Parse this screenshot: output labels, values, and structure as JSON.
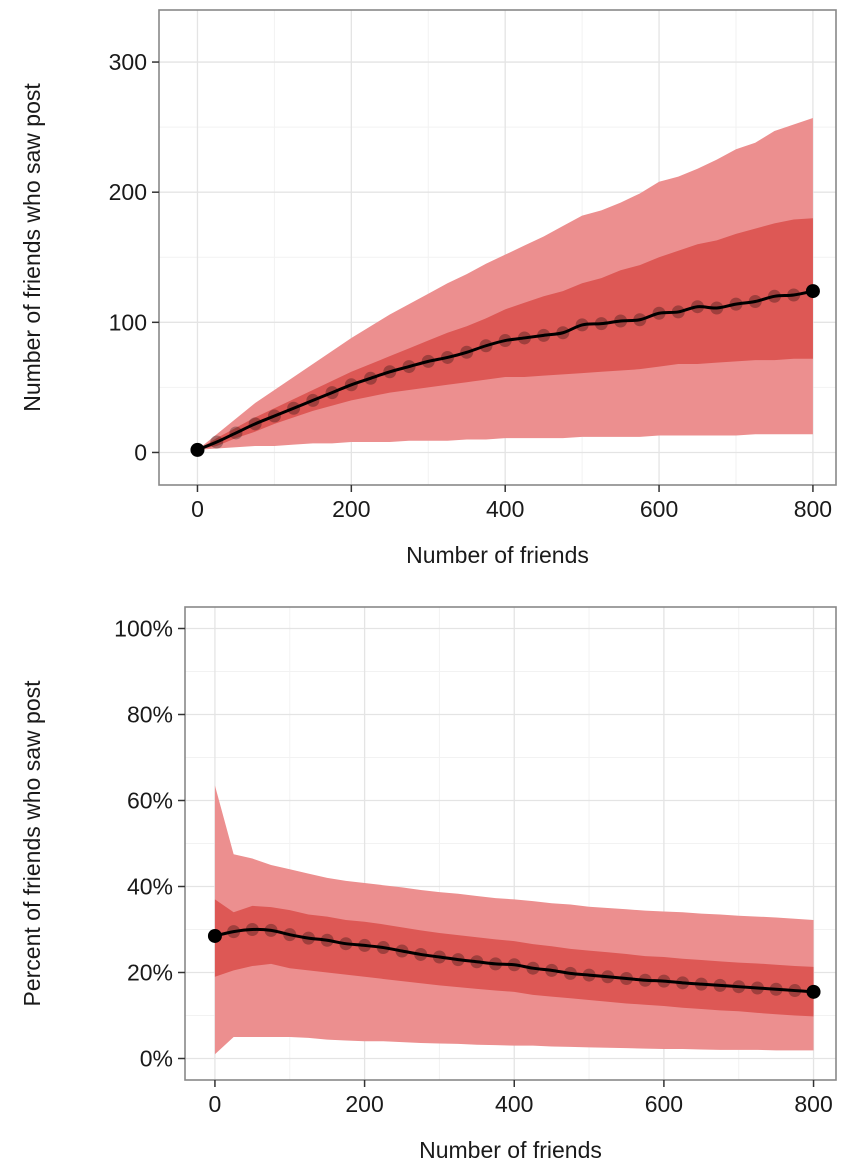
{
  "chart_data": [
    {
      "type": "area",
      "xlabel": "Number of friends",
      "ylabel": "Number of friends who saw post",
      "xlim": [
        -50,
        830
      ],
      "ylim": [
        -25,
        340
      ],
      "x_ticks": [
        0,
        200,
        400,
        600,
        800
      ],
      "y_ticks": [
        0,
        100,
        200,
        300
      ],
      "x_tick_labels": [
        "0",
        "200",
        "400",
        "600",
        "800"
      ],
      "y_tick_labels": [
        "0",
        "100",
        "200",
        "300"
      ],
      "grid": true,
      "colors": {
        "outer_band": "#ec8f8f",
        "inner_band": "#dd5855",
        "line": "#000000",
        "points": "#000000",
        "grid_major": "#e4e4e4",
        "grid_minor": "#f2f2f2",
        "border": "#888888"
      },
      "x": [
        0,
        25,
        50,
        75,
        100,
        125,
        150,
        175,
        200,
        225,
        250,
        275,
        300,
        325,
        350,
        375,
        400,
        425,
        450,
        475,
        500,
        525,
        550,
        575,
        600,
        625,
        650,
        675,
        700,
        725,
        750,
        775,
        800
      ],
      "series": [
        {
          "values": [
            2,
            8,
            15,
            22,
            28,
            34,
            40,
            46,
            52,
            57,
            62,
            66,
            70,
            73,
            77,
            82,
            86,
            88,
            90,
            92,
            98,
            99,
            101,
            102,
            107,
            108,
            112,
            111,
            114,
            116,
            120,
            121,
            124
          ]
        },
        {
          "values": [
            2,
            5,
            11,
            16,
            22,
            27,
            32,
            36,
            40,
            43,
            46,
            48,
            50,
            52,
            54,
            56,
            58,
            58,
            59,
            60,
            61,
            62,
            63,
            64,
            66,
            68,
            68,
            69,
            70,
            71,
            71,
            72,
            72
          ]
        },
        {
          "values": [
            2,
            11,
            19,
            27,
            34,
            41,
            48,
            55,
            62,
            68,
            74,
            80,
            86,
            92,
            97,
            103,
            110,
            115,
            120,
            124,
            130,
            134,
            140,
            144,
            150,
            155,
            160,
            163,
            168,
            172,
            176,
            179,
            180
          ]
        },
        {
          "values": [
            2,
            3,
            4,
            5,
            5,
            6,
            7,
            7,
            8,
            8,
            8,
            9,
            9,
            9,
            10,
            10,
            11,
            11,
            11,
            11,
            12,
            12,
            12,
            12,
            13,
            13,
            13,
            13,
            13,
            14,
            14,
            14,
            14
          ]
        },
        {
          "values": [
            2,
            14,
            26,
            38,
            48,
            58,
            68,
            78,
            88,
            97,
            106,
            114,
            122,
            130,
            137,
            145,
            152,
            159,
            166,
            174,
            182,
            186,
            192,
            199,
            208,
            212,
            218,
            225,
            233,
            238,
            247,
            252,
            257
          ]
        }
      ]
    },
    {
      "type": "area",
      "xlabel": "Number of friends",
      "ylabel": "Percent of friends who saw post",
      "xlim": [
        -40,
        830
      ],
      "ylim": [
        -5,
        105
      ],
      "x_ticks": [
        0,
        200,
        400,
        600,
        800
      ],
      "y_ticks": [
        0,
        20,
        40,
        60,
        80,
        100
      ],
      "x_tick_labels": [
        "0",
        "200",
        "400",
        "600",
        "800"
      ],
      "y_tick_labels": [
        "0%",
        "20%",
        "40%",
        "60%",
        "80%",
        "100%"
      ],
      "grid": true,
      "colors": {
        "outer_band": "#ec8f8f",
        "inner_band": "#dd5855",
        "line": "#000000",
        "points": "#000000",
        "grid_major": "#e4e4e4",
        "grid_minor": "#f2f2f2",
        "border": "#888888"
      },
      "x": [
        0,
        25,
        50,
        75,
        100,
        125,
        150,
        175,
        200,
        225,
        250,
        275,
        300,
        325,
        350,
        375,
        400,
        425,
        450,
        475,
        500,
        525,
        550,
        575,
        600,
        625,
        650,
        675,
        700,
        725,
        750,
        775,
        800
      ],
      "series": [
        {
          "values": [
            28.5,
            29.5,
            30.0,
            29.8,
            28.8,
            28.0,
            27.5,
            26.7,
            26.3,
            25.8,
            25.0,
            24.2,
            23.6,
            23.0,
            22.5,
            22.0,
            21.8,
            21.0,
            20.5,
            19.8,
            19.4,
            19.0,
            18.6,
            18.2,
            18.0,
            17.6,
            17.3,
            17.0,
            16.7,
            16.4,
            16.1,
            15.8,
            15.5
          ]
        },
        {
          "values": [
            19,
            20.5,
            21.5,
            22.0,
            21.0,
            20.5,
            20.0,
            19.5,
            19.0,
            18.5,
            18.0,
            17.5,
            17.0,
            16.6,
            16.2,
            15.8,
            15.5,
            14.8,
            14.4,
            14.0,
            13.6,
            13.2,
            12.8,
            12.5,
            12.2,
            11.8,
            11.5,
            11.2,
            11.0,
            10.6,
            10.3,
            10.0,
            9.8
          ]
        },
        {
          "values": [
            37,
            34.0,
            35.5,
            35.2,
            34.5,
            33.5,
            33.0,
            32.2,
            31.8,
            31.2,
            30.5,
            29.8,
            29.2,
            28.7,
            28.2,
            27.7,
            27.3,
            26.6,
            26.1,
            25.5,
            25.1,
            24.7,
            24.3,
            23.8,
            23.6,
            23.2,
            22.9,
            22.6,
            22.3,
            22.1,
            21.8,
            21.5,
            21.3
          ]
        },
        {
          "values": [
            1,
            5.0,
            5.0,
            5.0,
            5.0,
            4.8,
            4.4,
            4.2,
            4.0,
            4.0,
            3.8,
            3.6,
            3.5,
            3.4,
            3.2,
            3.1,
            3.0,
            3.0,
            2.8,
            2.7,
            2.6,
            2.5,
            2.4,
            2.3,
            2.2,
            2.2,
            2.1,
            2.0,
            2.0,
            2.0,
            1.9,
            1.9,
            1.9
          ]
        },
        {
          "values": [
            63.5,
            47.5,
            46.5,
            45.0,
            44.0,
            43.0,
            42.0,
            41.3,
            40.8,
            40.3,
            39.8,
            39.2,
            38.7,
            38.3,
            37.8,
            37.3,
            37.0,
            36.6,
            36.1,
            35.8,
            35.3,
            35.0,
            34.7,
            34.4,
            34.2,
            34.0,
            33.7,
            33.5,
            33.2,
            33.0,
            32.8,
            32.5,
            32.2
          ]
        }
      ]
    }
  ]
}
